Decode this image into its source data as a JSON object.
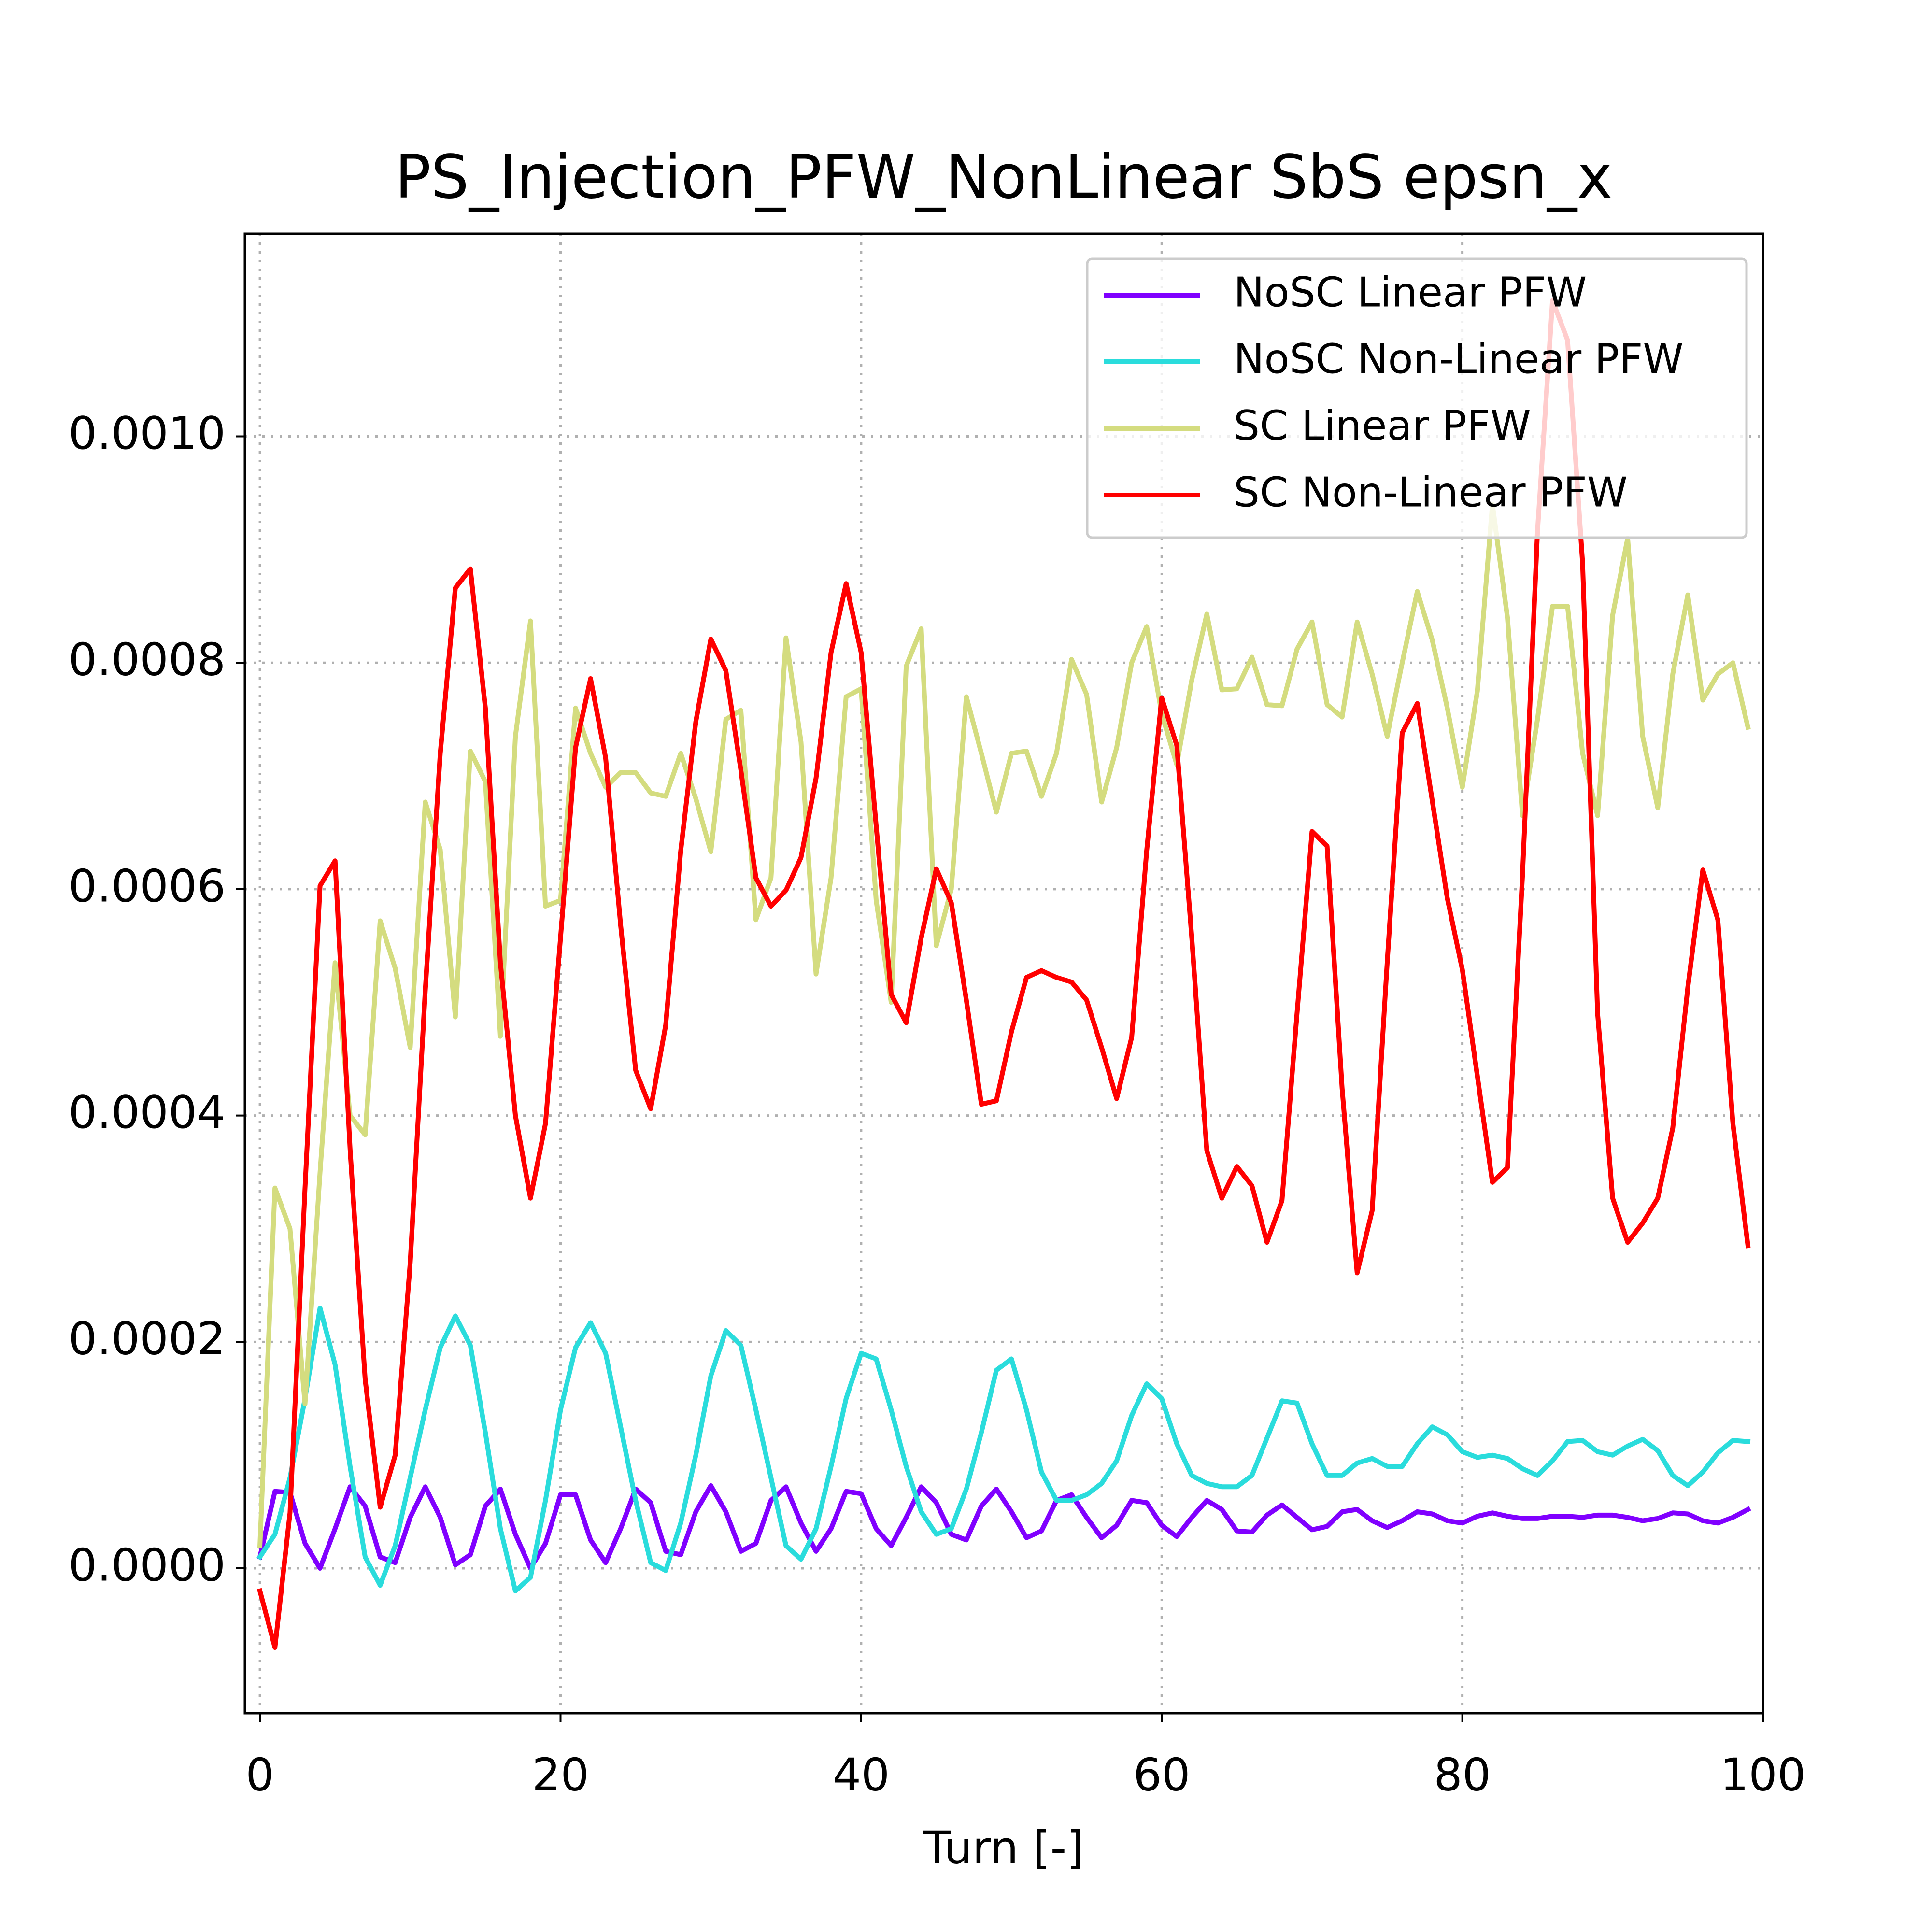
{
  "chart_data": {
    "type": "line",
    "title": "PS_Injection_PFW_NonLinear SbS epsn_x",
    "xlabel": "Turn [-]",
    "x": [
      0,
      1,
      2,
      3,
      4,
      5,
      6,
      7,
      8,
      9,
      10,
      11,
      12,
      13,
      14,
      15,
      16,
      17,
      18,
      19,
      20,
      21,
      22,
      23,
      24,
      25,
      26,
      27,
      28,
      29,
      30,
      31,
      32,
      33,
      34,
      35,
      36,
      37,
      38,
      39,
      40,
      41,
      42,
      43,
      44,
      45,
      46,
      47,
      48,
      49,
      50,
      51,
      52,
      53,
      54,
      55,
      56,
      57,
      58,
      59,
      60,
      61,
      62,
      63,
      64,
      65,
      66,
      67,
      68,
      69,
      70,
      71,
      72,
      73,
      74,
      75,
      76,
      77,
      78,
      79,
      80,
      81,
      82,
      83,
      84,
      85,
      86,
      87,
      88,
      89,
      90,
      91,
      92,
      93,
      94,
      95,
      96,
      97,
      98,
      99
    ],
    "xlim": [
      -1,
      100
    ],
    "xticks": [
      0,
      20,
      40,
      60,
      80,
      100
    ],
    "ylim": [
      -0.000128,
      0.001179
    ],
    "yticks": [
      {
        "value": 0,
        "label": "0.0000"
      },
      {
        "value": 0.0002,
        "label": "0.0002"
      },
      {
        "value": 0.0004,
        "label": "0.0004"
      },
      {
        "value": 0.0006,
        "label": "0.0006"
      },
      {
        "value": 0.0008,
        "label": "0.0008"
      },
      {
        "value": 0.001,
        "label": "0.0010"
      }
    ],
    "grid": true,
    "legend": "upper right",
    "series": [
      {
        "name": "NoSC Linear PFW",
        "color": "#8000ff",
        "values": [
          1e-05,
          6.8e-05,
          6.7e-05,
          2.2e-05,
          0.0,
          3.5e-05,
          7.2e-05,
          5.5e-05,
          1e-05,
          5e-06,
          4.5e-05,
          7.2e-05,
          4.5e-05,
          3e-06,
          1.2e-05,
          5.5e-05,
          7e-05,
          3e-05,
          0.0,
          2.2e-05,
          6.5e-05,
          6.5e-05,
          2.5e-05,
          5e-06,
          3.5e-05,
          7e-05,
          5.8e-05,
          1.5e-05,
          1.2e-05,
          5e-05,
          7.3e-05,
          5e-05,
          1.5e-05,
          2.2e-05,
          6e-05,
          7.2e-05,
          4e-05,
          1.5e-05,
          3.5e-05,
          6.8e-05,
          6.6e-05,
          3.5e-05,
          2e-05,
          4.5e-05,
          7.2e-05,
          5.8e-05,
          3e-05,
          2.5e-05,
          5.5e-05,
          7e-05,
          5e-05,
          2.7e-05,
          3.3e-05,
          6e-05,
          6.5e-05,
          4.5e-05,
          2.7e-05,
          3.8e-05,
          6e-05,
          5.8e-05,
          3.8e-05,
          2.8e-05,
          4.5e-05,
          6e-05,
          5.2e-05,
          3.3e-05,
          3.2e-05,
          4.7e-05,
          5.6e-05,
          4.5e-05,
          3.4e-05,
          3.7e-05,
          5e-05,
          5.2e-05,
          4.2e-05,
          3.6e-05,
          4.2e-05,
          5e-05,
          4.8e-05,
          4.2e-05,
          4e-05,
          4.6e-05,
          4.9e-05,
          4.6e-05,
          4.4e-05,
          4.4e-05,
          4.6e-05,
          4.6e-05,
          4.5e-05,
          4.7e-05,
          4.7e-05,
          4.5e-05,
          4.2e-05,
          4.4e-05,
          4.9e-05,
          4.8e-05,
          4.2e-05,
          4e-05,
          4.5e-05,
          5.2e-05
        ]
      },
      {
        "name": "NoSC Non-Linear PFW",
        "color": "#2adcdc",
        "values": [
          1e-05,
          3e-05,
          8e-05,
          0.00015,
          0.00023,
          0.00018,
          9e-05,
          1e-05,
          -1.5e-05,
          2e-05,
          8e-05,
          0.00014,
          0.000195,
          0.000223,
          0.000197,
          0.00012,
          3.5e-05,
          -2e-05,
          -8e-06,
          6e-05,
          0.00014,
          0.000195,
          0.000217,
          0.00019,
          0.000125,
          6e-05,
          5e-06,
          -2e-06,
          4e-05,
          0.0001,
          0.00017,
          0.00021,
          0.000197,
          0.00014,
          8e-05,
          2e-05,
          8e-06,
          3.5e-05,
          9e-05,
          0.00015,
          0.00019,
          0.000185,
          0.00014,
          9e-05,
          5e-05,
          3e-05,
          3.5e-05,
          7e-05,
          0.00012,
          0.000175,
          0.000185,
          0.00014,
          8.5e-05,
          6e-05,
          6e-05,
          6.5e-05,
          7.5e-05,
          9.5e-05,
          0.000135,
          0.000163,
          0.00015,
          0.00011,
          8.2e-05,
          7.5e-05,
          7.2e-05,
          7.2e-05,
          8.2e-05,
          0.000115,
          0.000148,
          0.000146,
          0.00011,
          8.2e-05,
          8.2e-05,
          9.3e-05,
          9.7e-05,
          9e-05,
          9e-05,
          0.00011,
          0.000125,
          0.000118,
          0.000103,
          9.8e-05,
          0.0001,
          9.7e-05,
          8.8e-05,
          8.2e-05,
          9.5e-05,
          0.000112,
          0.000113,
          0.000103,
          0.0001,
          0.000108,
          0.000114,
          0.000104,
          8.2e-05,
          7.3e-05,
          8.5e-05,
          0.000102,
          0.000113,
          0.000112
        ]
      },
      {
        "name": "SC Linear PFW",
        "color": "#d4dc7f",
        "values": [
          2e-05,
          0.000336,
          0.0003,
          0.000145,
          0.00035,
          0.000535,
          0.0004,
          0.000383,
          0.000572,
          0.00053,
          0.00046,
          0.000677,
          0.000635,
          0.000487,
          0.000722,
          0.000695,
          0.00047,
          0.000735,
          0.000837,
          0.000585,
          0.00059,
          0.00076,
          0.00072,
          0.00069,
          0.000703,
          0.000703,
          0.000685,
          0.000682,
          0.00072,
          0.00068,
          0.000633,
          0.00075,
          0.000758,
          0.000573,
          0.00061,
          0.000822,
          0.00073,
          0.000525,
          0.00061,
          0.00077,
          0.000777,
          0.00059,
          0.0005,
          0.000797,
          0.00083,
          0.00055,
          0.0006,
          0.00077,
          0.00072,
          0.000668,
          0.00072,
          0.000722,
          0.000682,
          0.00072,
          0.000803,
          0.000772,
          0.000677,
          0.000725,
          0.0008,
          0.000832,
          0.000755,
          0.00071,
          0.000785,
          0.000843,
          0.000776,
          0.000777,
          0.000805,
          0.000763,
          0.000762,
          0.000812,
          0.000836,
          0.000763,
          0.000752,
          0.000836,
          0.00079,
          0.000735,
          0.0008,
          0.000863,
          0.00082,
          0.00076,
          0.00069,
          0.000775,
          0.00094,
          0.00084,
          0.000665,
          0.00075,
          0.00085,
          0.00085,
          0.00072,
          0.000665,
          0.000842,
          0.00091,
          0.000735,
          0.000672,
          0.00079,
          0.00086,
          0.000767,
          0.00079,
          0.0008,
          0.000743
        ]
      },
      {
        "name": "SC Non-Linear PFW",
        "color": "#ff0000",
        "values": [
          -2e-05,
          -7e-05,
          4.9e-05,
          0.000336,
          0.000603,
          0.000625,
          0.00037,
          0.000167,
          5.4e-05,
          0.0001,
          0.00027,
          0.00051,
          0.00072,
          0.000866,
          0.000883,
          0.00076,
          0.000535,
          0.0004,
          0.000327,
          0.000393,
          0.000557,
          0.000725,
          0.000786,
          0.000716,
          0.000568,
          0.00044,
          0.000406,
          0.00048,
          0.000634,
          0.000748,
          0.000821,
          0.000793,
          0.000705,
          0.00061,
          0.000585,
          0.000599,
          0.000628,
          0.000698,
          0.000809,
          0.00087,
          0.000809,
          0.000656,
          0.000507,
          0.000482,
          0.000557,
          0.000618,
          0.000588,
          0.000502,
          0.00041,
          0.000413,
          0.000474,
          0.000522,
          0.000528,
          0.000522,
          0.000518,
          0.000502,
          0.00046,
          0.000415,
          0.000469,
          0.000634,
          0.000769,
          0.000727,
          0.000557,
          0.000369,
          0.000327,
          0.000355,
          0.000338,
          0.000288,
          0.000325,
          0.00049,
          0.000651,
          0.000638,
          0.000424,
          0.000261,
          0.000316,
          0.000535,
          0.000738,
          0.000764,
          0.000678,
          0.000592,
          0.000529,
          0.000435,
          0.000341,
          0.000354,
          0.000612,
          0.000916,
          0.00112,
          0.001085,
          0.000888,
          0.00049,
          0.000327,
          0.000288,
          0.000305,
          0.000327,
          0.000389,
          0.000513,
          0.000617,
          0.000573,
          0.000393,
          0.000285
        ]
      }
    ]
  }
}
